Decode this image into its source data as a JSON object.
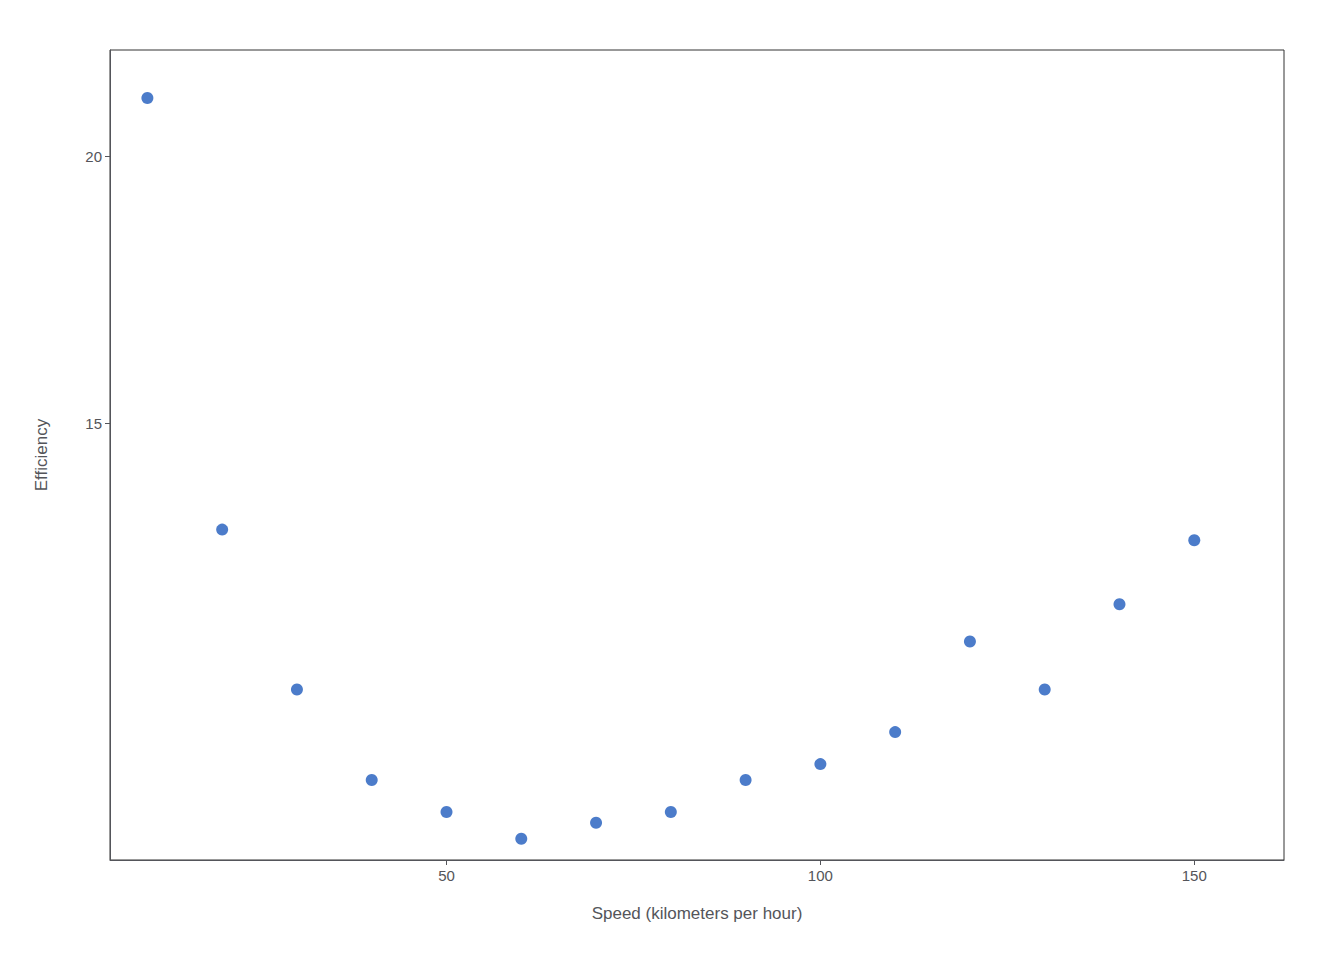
{
  "chart_data": {
    "type": "scatter",
    "x": [
      10,
      20,
      30,
      40,
      50,
      60,
      70,
      80,
      90,
      100,
      110,
      120,
      130,
      140,
      150
    ],
    "values": [
      21.1,
      13.0,
      10.0,
      8.3,
      7.7,
      7.2,
      7.5,
      7.7,
      8.3,
      8.6,
      9.2,
      10.9,
      10.0,
      11.6,
      12.8
    ],
    "color": "#1f5bbd",
    "xlabel": "Speed (kilometers per hour)",
    "ylabel": "Efficiency",
    "xlim": [
      5,
      162
    ],
    "ylim": [
      6.8,
      22.0
    ],
    "xticks": [
      50,
      100,
      150
    ],
    "yticks": [
      15,
      20
    ],
    "grid": false
  }
}
